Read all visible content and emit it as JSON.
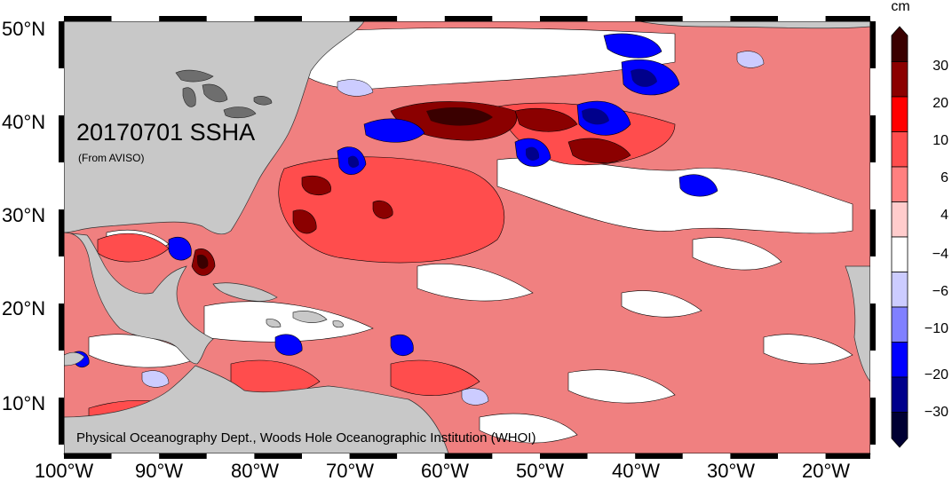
{
  "title": "20170701 SSHA",
  "subtitle": "(From AVISO)",
  "credit": "Physical Oceanography Dept., Woods Hole Oceanographic Institution (WHOI)",
  "colorbar": {
    "unit": "cm",
    "tick_labels": [
      "30",
      "20",
      "10",
      "6",
      "4",
      "−4",
      "−6",
      "−10",
      "−20",
      "−30"
    ],
    "colors": [
      "#3a0000",
      "#8b0000",
      "#ff0000",
      "#ff4d4d",
      "#ff8080",
      "#ffcccc",
      "#ffffff",
      "#ccccff",
      "#8080ff",
      "#0000ff",
      "#00008b",
      "#000033"
    ]
  },
  "axes": {
    "lat_labels": [
      "50°N",
      "40°N",
      "30°N",
      "20°N",
      "10°N"
    ],
    "lon_labels": [
      "100°W",
      "90°W",
      "80°W",
      "70°W",
      "60°W",
      "50°W",
      "40°W",
      "30°W",
      "20°W"
    ]
  },
  "colors": {
    "land": "#c8c8c8",
    "lakes": "#6e6e6e",
    "ocean_base": "#f08080"
  }
}
